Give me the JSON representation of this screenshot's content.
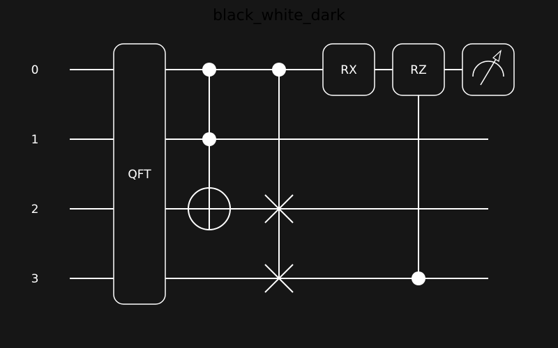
{
  "title": "black_white_dark",
  "colors": {
    "background": "#161616",
    "foreground": "#ffffff",
    "title": "#000000"
  },
  "wires": [
    {
      "label": "0"
    },
    {
      "label": "1"
    },
    {
      "label": "2"
    },
    {
      "label": "3"
    }
  ],
  "gates": {
    "qft": {
      "label": "QFT",
      "wires": [
        0,
        1,
        2,
        3
      ]
    },
    "toffoli": {
      "controls": [
        0,
        1
      ],
      "target": 2
    },
    "cswap": {
      "control": 0,
      "swap": [
        2,
        3
      ]
    },
    "rx": {
      "label": "RX",
      "wire": 0
    },
    "crz": {
      "label": "RZ",
      "target": 0,
      "control": 3
    },
    "measure": {
      "wire": 0,
      "icon": "meter-icon"
    }
  }
}
